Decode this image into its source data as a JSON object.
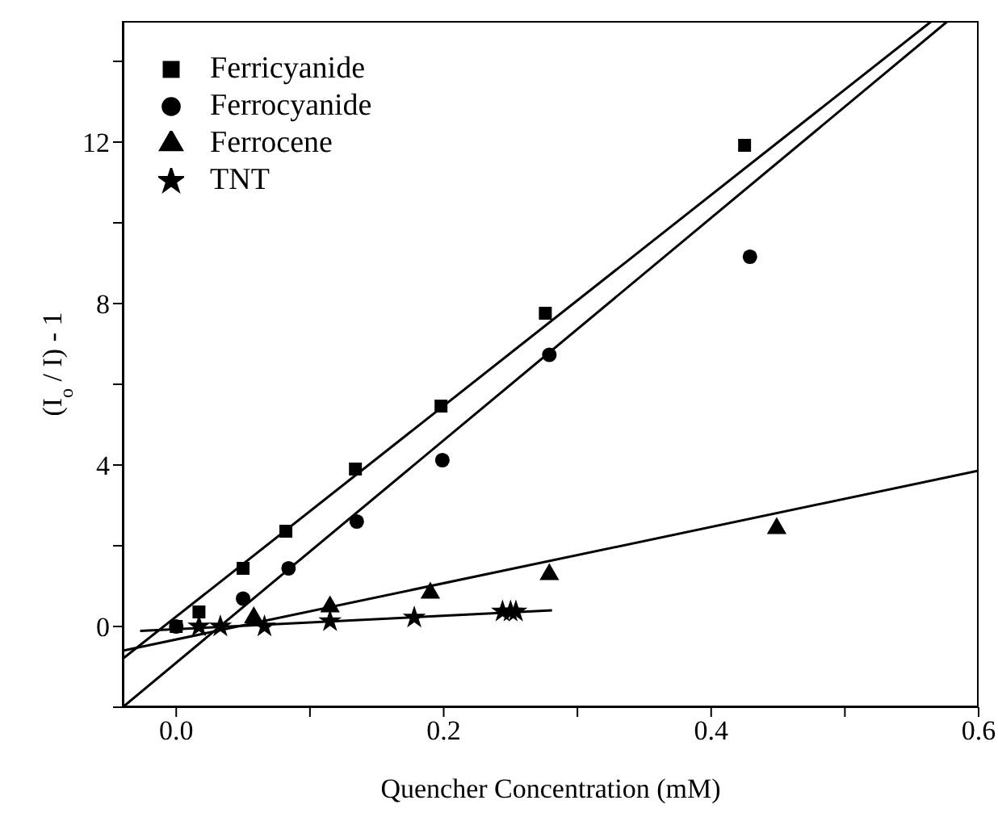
{
  "chart_data": {
    "type": "scatter",
    "xlabel": "Quencher Concentration (mM)",
    "ylabel": "(I$_{o}$ / I) - 1",
    "xlim": [
      -0.04,
      0.6
    ],
    "xticks": [
      {
        "value": 0,
        "label": "0.0"
      },
      {
        "value": 0.1,
        "label": null
      },
      {
        "value": 0.2,
        "label": "0.2"
      },
      {
        "value": 0.3,
        "label": null
      },
      {
        "value": 0.4,
        "label": "0.4"
      },
      {
        "value": 0.5,
        "label": null
      },
      {
        "value": 0.6,
        "label": "0.6"
      }
    ],
    "ylim": [
      -2,
      15
    ],
    "yticks": [
      {
        "value": -2,
        "label": null
      },
      0,
      {
        "value": 2,
        "label": null
      },
      4,
      {
        "value": 6,
        "label": null
      },
      8,
      {
        "value": 10,
        "label": null
      },
      12,
      {
        "value": 14,
        "label": null
      }
    ],
    "grid": false,
    "legend": "top left",
    "series": [
      {
        "name": "Ferricyanide",
        "color": "#000000",
        "marker": "square",
        "x": [
          0,
          0.017,
          0.05,
          0.082,
          0.134,
          0.198,
          0.276,
          0.425
        ],
        "values": [
          0,
          0.36,
          1.44,
          2.36,
          3.9,
          5.46,
          7.76,
          11.92
        ]
      },
      {
        "name": "Ferrocyanide",
        "color": "#000000",
        "marker": "circle",
        "x": [
          0,
          0.017,
          0.05,
          0.084,
          0.135,
          0.199,
          0.279,
          0.429
        ],
        "values": [
          0,
          null,
          0.69,
          1.44,
          2.6,
          4.12,
          6.73,
          9.16
        ]
      },
      {
        "name": "Ferrocene",
        "color": "#000000",
        "marker": "triangle",
        "x": [
          0.058,
          0.115,
          0.19,
          0.279,
          0.449
        ],
        "values": [
          0.22,
          0.49,
          0.83,
          1.29,
          2.43
        ]
      },
      {
        "name": "TNT",
        "color": "#000000",
        "marker": "star",
        "x": [
          0.017,
          0.033,
          0.066,
          0.115,
          0.178,
          0.244,
          0.25,
          0.254
        ],
        "values": [
          0,
          0,
          0,
          0.13,
          0.22,
          0.37,
          0.37,
          0.37
        ]
      },
      {
        "type": "line",
        "color": "#000000",
        "marker": "none",
        "x": [
          -0.04,
          0.565
        ],
        "values": [
          -0.8,
          15
        ]
      },
      {
        "type": "line",
        "color": "#000000",
        "marker": "none",
        "x": [
          -0.04,
          0.577
        ],
        "values": [
          -2,
          15
        ]
      },
      {
        "type": "line",
        "color": "#000000",
        "marker": "none",
        "x": [
          -0.04,
          0.6
        ],
        "values": [
          -0.6,
          3.86
        ]
      },
      {
        "type": "line",
        "color": "#000000",
        "marker": "none",
        "x": [
          -0.027,
          0.281
        ],
        "values": [
          -0.11,
          0.4
        ]
      }
    ]
  }
}
